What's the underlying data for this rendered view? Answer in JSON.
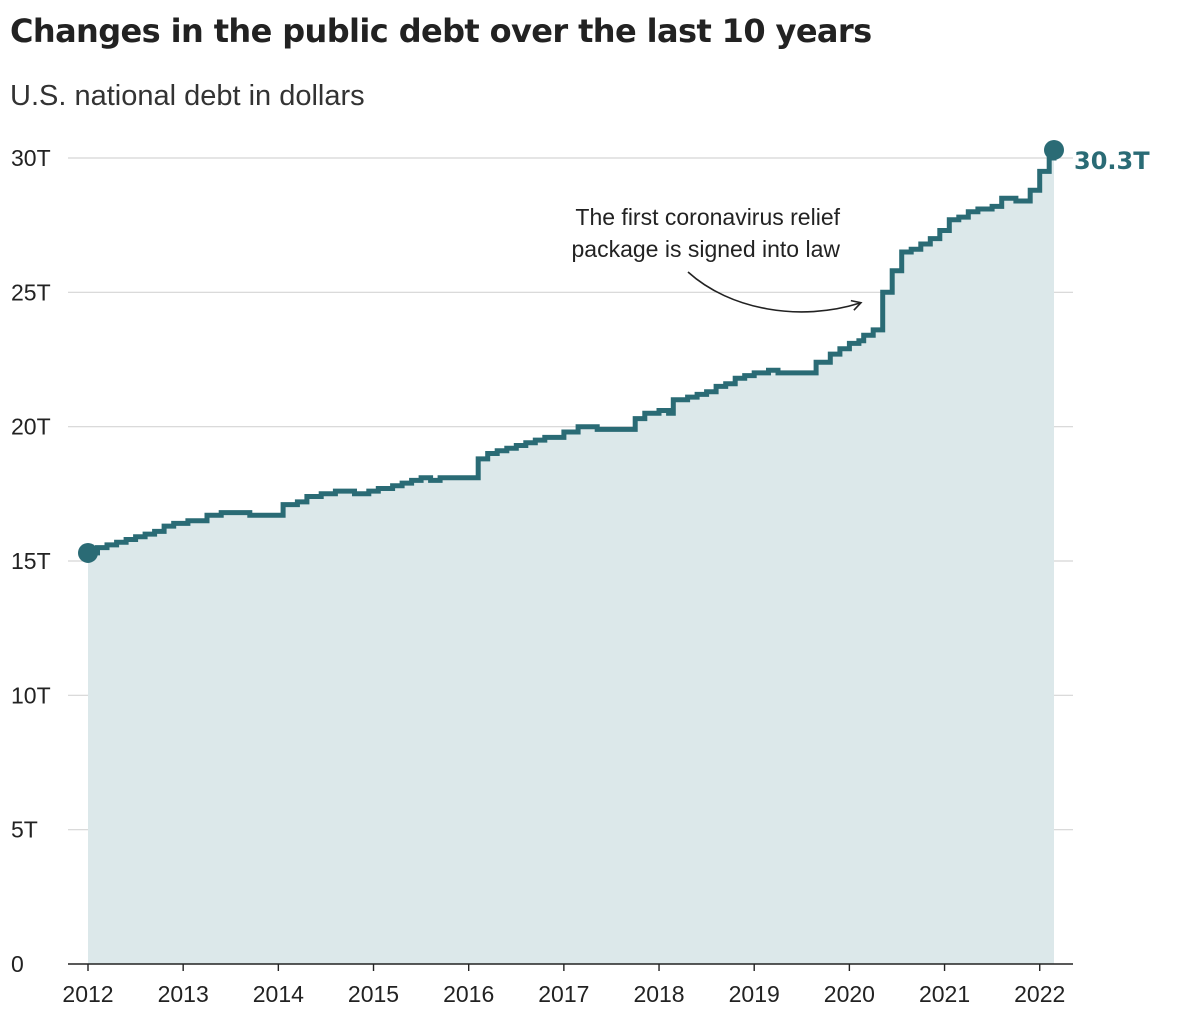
{
  "chart_data": {
    "type": "area",
    "title": "Changes in the public debt over the last 10 years",
    "subtitle": "U.S. national debt in dollars",
    "xlabel": "",
    "ylabel": "",
    "xlim": [
      2012.0,
      2022.15
    ],
    "ylim": [
      0,
      30
    ],
    "y_ticks": [
      0,
      5,
      10,
      15,
      20,
      25,
      30
    ],
    "y_tick_labels": [
      "0",
      "5T",
      "10T",
      "15T",
      "20T",
      "25T",
      "30T"
    ],
    "x_ticks": [
      2012,
      2013,
      2014,
      2015,
      2016,
      2017,
      2018,
      2019,
      2020,
      2021,
      2022
    ],
    "x_tick_labels": [
      "2012",
      "2013",
      "2014",
      "2015",
      "2016",
      "2017",
      "2018",
      "2019",
      "2020",
      "2021",
      "2022"
    ],
    "grid": true,
    "colors": {
      "line": "#2a6b75",
      "fill": "#dce8ea",
      "grid": "#d5d5d5"
    },
    "series": [
      {
        "step": true,
        "x": [
          2012.0,
          2012.1,
          2012.2,
          2012.3,
          2012.4,
          2012.5,
          2012.6,
          2012.7,
          2012.8,
          2012.9,
          2013.05,
          2013.25,
          2013.4,
          2013.7,
          2013.85,
          2014.05,
          2014.2,
          2014.3,
          2014.45,
          2014.6,
          2014.8,
          2014.95,
          2015.05,
          2015.2,
          2015.3,
          2015.4,
          2015.5,
          2015.6,
          2015.7,
          2015.85,
          2016.0,
          2016.1,
          2016.2,
          2016.3,
          2016.4,
          2016.5,
          2016.6,
          2016.7,
          2016.8,
          2017.0,
          2017.15,
          2017.35,
          2017.5,
          2017.6,
          2017.75,
          2017.85,
          2018.0,
          2018.1,
          2018.15,
          2018.3,
          2018.4,
          2018.5,
          2018.6,
          2018.7,
          2018.8,
          2018.9,
          2019.0,
          2019.15,
          2019.25,
          2019.35,
          2019.45,
          2019.55,
          2019.65,
          2019.8,
          2019.9,
          2020.0,
          2020.1,
          2020.15,
          2020.25,
          2020.35,
          2020.45,
          2020.55,
          2020.65,
          2020.75,
          2020.85,
          2020.95,
          2021.05,
          2021.15,
          2021.25,
          2021.35,
          2021.5,
          2021.6,
          2021.75,
          2021.9,
          2022.0,
          2022.1,
          2022.15
        ],
        "y": [
          15.3,
          15.5,
          15.6,
          15.7,
          15.8,
          15.9,
          16.0,
          16.1,
          16.3,
          16.4,
          16.5,
          16.7,
          16.8,
          16.7,
          16.7,
          17.1,
          17.2,
          17.4,
          17.5,
          17.6,
          17.5,
          17.6,
          17.7,
          17.8,
          17.9,
          18.0,
          18.1,
          18.0,
          18.1,
          18.1,
          18.1,
          18.8,
          19.0,
          19.1,
          19.2,
          19.3,
          19.4,
          19.5,
          19.6,
          19.8,
          20.0,
          19.9,
          19.9,
          19.9,
          20.3,
          20.5,
          20.6,
          20.5,
          21.0,
          21.1,
          21.2,
          21.3,
          21.5,
          21.6,
          21.8,
          21.9,
          22.0,
          22.1,
          22.0,
          22.0,
          22.0,
          22.0,
          22.4,
          22.7,
          22.9,
          23.1,
          23.2,
          23.4,
          23.6,
          25.0,
          25.8,
          26.5,
          26.6,
          26.8,
          27.0,
          27.3,
          27.7,
          27.8,
          28.0,
          28.1,
          28.2,
          28.5,
          28.4,
          28.8,
          29.5,
          30.0,
          30.3
        ]
      }
    ],
    "start_marker": {
      "x": 2012.0,
      "y": 15.3
    },
    "end_marker": {
      "x": 2022.15,
      "y": 30.3,
      "label": "30.3T"
    },
    "annotations": [
      {
        "lines": [
          "The first coronavirus relief",
          "package is signed into law"
        ],
        "x": 2020.3,
        "y": 24.7
      }
    ]
  }
}
